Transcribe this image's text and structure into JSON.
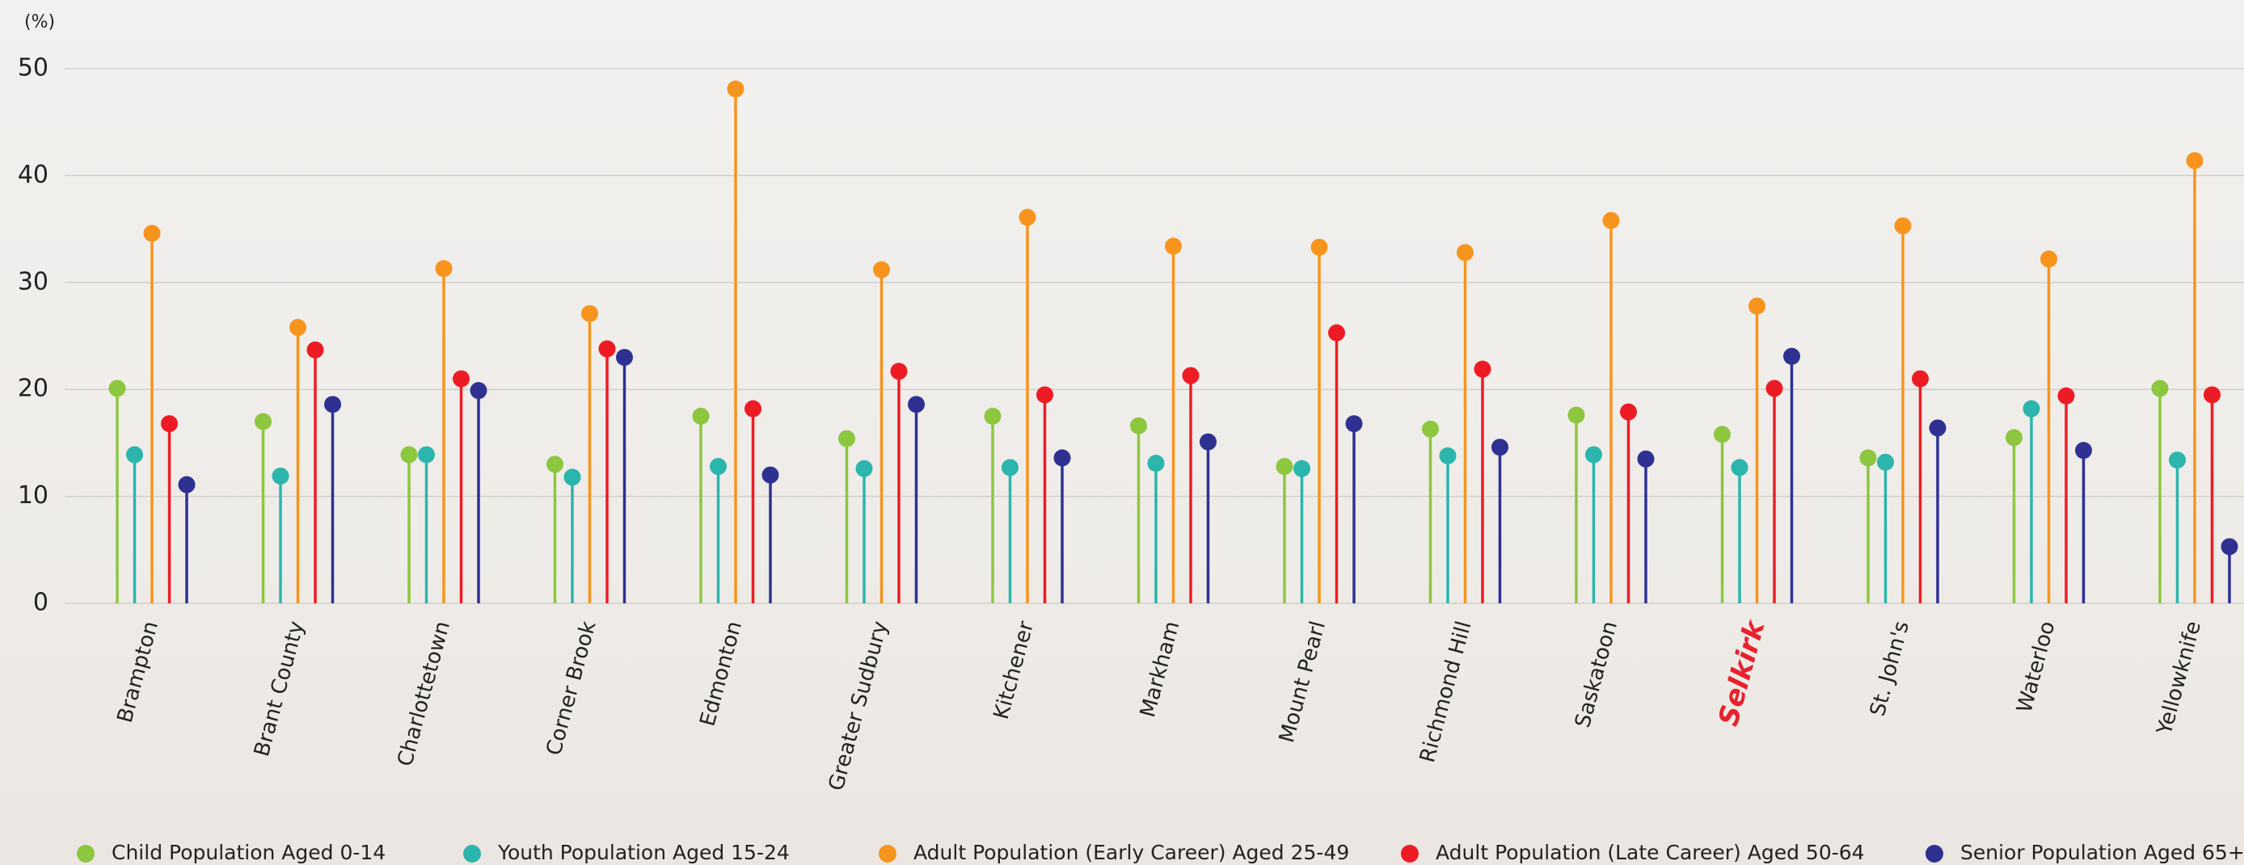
{
  "chart_data": {
    "type": "lollipop",
    "y_label": "(%)",
    "categories": [
      "Brampton",
      "Brant County",
      "Charlottetown",
      "Corner Brook",
      "Edmonton",
      "Greater Sudbury",
      "Kitchener",
      "Markham",
      "Mount Pearl",
      "Richmond Hill",
      "Saskatoon",
      "Selkirk",
      "St. John's",
      "Waterloo",
      "Yellowknife"
    ],
    "highlight_category_index": 11,
    "highlight_color": "#e8212e",
    "series": [
      {
        "name": "Child Population Aged 0-14",
        "color": "#8dc63f",
        "values": [
          20.1,
          17,
          13.9,
          13,
          17.5,
          15.4,
          17.5,
          16.6,
          12.8,
          16.3,
          17.6,
          15.8,
          13.6,
          15.5,
          20.1
        ]
      },
      {
        "name": "Youth Population Aged 15-24",
        "color": "#2bb5ac",
        "values": [
          13.9,
          11.9,
          13.9,
          11.8,
          12.8,
          12.6,
          12.7,
          13.1,
          12.6,
          13.8,
          13.9,
          12.7,
          13.2,
          18.2,
          13.4
        ]
      },
      {
        "name": "Adult Population (Early Career) Aged 25-49",
        "color": "#f7941d",
        "values": [
          34.6,
          25.8,
          31.3,
          27.1,
          48.1,
          31.2,
          36.1,
          33.4,
          33.3,
          32.8,
          35.8,
          27.8,
          35.3,
          32.2,
          41.4
        ]
      },
      {
        "name": "Adult Population (Late Career) Aged 50-64",
        "color": "#ed1c24",
        "values": [
          16.8,
          23.7,
          21,
          23.8,
          18.2,
          21.7,
          19.5,
          21.3,
          25.3,
          21.9,
          17.9,
          20.1,
          21,
          19.4,
          19.5
        ]
      },
      {
        "name": "Senior Population Aged 65+",
        "color": "#2e3192",
        "values": [
          11.1,
          18.6,
          19.9,
          23,
          12,
          18.6,
          13.6,
          15.1,
          16.8,
          14.6,
          13.5,
          23.1,
          16.4,
          14.3,
          5.3
        ]
      }
    ],
    "ylim": [
      0,
      50
    ],
    "yticks": [
      0,
      10,
      20,
      30,
      40,
      50
    ],
    "grid": true
  }
}
